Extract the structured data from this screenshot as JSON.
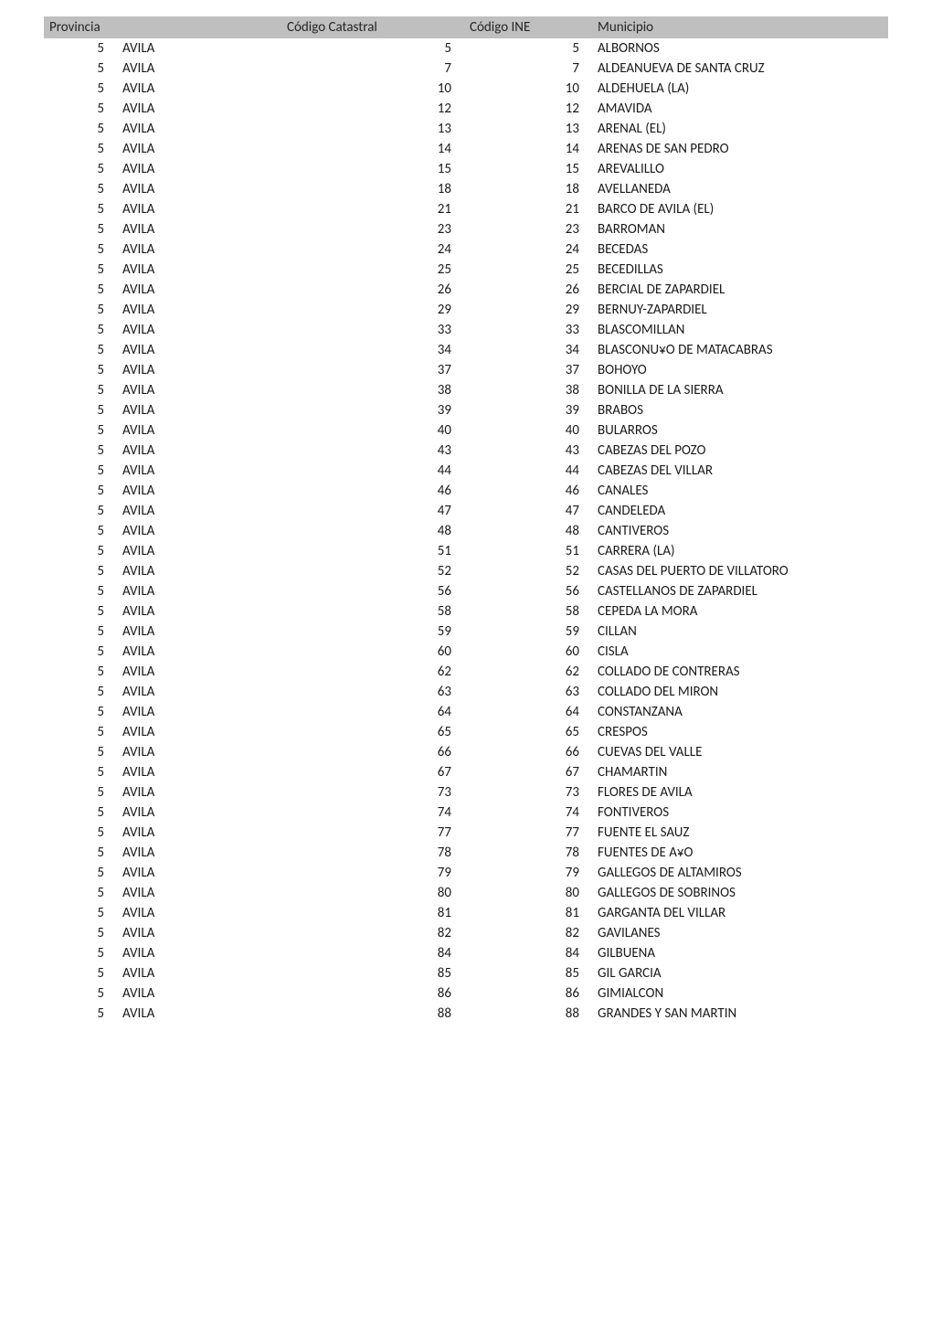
{
  "headers": {
    "provincia": "Provincia",
    "codigo_catastral": "Código Catastral",
    "codigo_ine": "Código INE",
    "municipio": "Municipio"
  },
  "rows": [
    {
      "prov_code": 5,
      "prov_name": "AVILA",
      "cat": 5,
      "ine": 5,
      "muni": "ALBORNOS"
    },
    {
      "prov_code": 5,
      "prov_name": "AVILA",
      "cat": 7,
      "ine": 7,
      "muni": "ALDEANUEVA DE SANTA CRUZ"
    },
    {
      "prov_code": 5,
      "prov_name": "AVILA",
      "cat": 10,
      "ine": 10,
      "muni": "ALDEHUELA (LA)"
    },
    {
      "prov_code": 5,
      "prov_name": "AVILA",
      "cat": 12,
      "ine": 12,
      "muni": "AMAVIDA"
    },
    {
      "prov_code": 5,
      "prov_name": "AVILA",
      "cat": 13,
      "ine": 13,
      "muni": "ARENAL (EL)"
    },
    {
      "prov_code": 5,
      "prov_name": "AVILA",
      "cat": 14,
      "ine": 14,
      "muni": "ARENAS DE SAN PEDRO"
    },
    {
      "prov_code": 5,
      "prov_name": "AVILA",
      "cat": 15,
      "ine": 15,
      "muni": "AREVALILLO"
    },
    {
      "prov_code": 5,
      "prov_name": "AVILA",
      "cat": 18,
      "ine": 18,
      "muni": "AVELLANEDA"
    },
    {
      "prov_code": 5,
      "prov_name": "AVILA",
      "cat": 21,
      "ine": 21,
      "muni": "BARCO DE AVILA (EL)"
    },
    {
      "prov_code": 5,
      "prov_name": "AVILA",
      "cat": 23,
      "ine": 23,
      "muni": "BARROMAN"
    },
    {
      "prov_code": 5,
      "prov_name": "AVILA",
      "cat": 24,
      "ine": 24,
      "muni": "BECEDAS"
    },
    {
      "prov_code": 5,
      "prov_name": "AVILA",
      "cat": 25,
      "ine": 25,
      "muni": "BECEDILLAS"
    },
    {
      "prov_code": 5,
      "prov_name": "AVILA",
      "cat": 26,
      "ine": 26,
      "muni": "BERCIAL DE ZAPARDIEL"
    },
    {
      "prov_code": 5,
      "prov_name": "AVILA",
      "cat": 29,
      "ine": 29,
      "muni": "BERNUY-ZAPARDIEL"
    },
    {
      "prov_code": 5,
      "prov_name": "AVILA",
      "cat": 33,
      "ine": 33,
      "muni": "BLASCOMILLAN"
    },
    {
      "prov_code": 5,
      "prov_name": "AVILA",
      "cat": 34,
      "ine": 34,
      "muni": "BLASCONU¥O DE MATACABRAS"
    },
    {
      "prov_code": 5,
      "prov_name": "AVILA",
      "cat": 37,
      "ine": 37,
      "muni": "BOHOYO"
    },
    {
      "prov_code": 5,
      "prov_name": "AVILA",
      "cat": 38,
      "ine": 38,
      "muni": "BONILLA DE LA SIERRA"
    },
    {
      "prov_code": 5,
      "prov_name": "AVILA",
      "cat": 39,
      "ine": 39,
      "muni": "BRABOS"
    },
    {
      "prov_code": 5,
      "prov_name": "AVILA",
      "cat": 40,
      "ine": 40,
      "muni": "BULARROS"
    },
    {
      "prov_code": 5,
      "prov_name": "AVILA",
      "cat": 43,
      "ine": 43,
      "muni": "CABEZAS DEL POZO"
    },
    {
      "prov_code": 5,
      "prov_name": "AVILA",
      "cat": 44,
      "ine": 44,
      "muni": "CABEZAS DEL VILLAR"
    },
    {
      "prov_code": 5,
      "prov_name": "AVILA",
      "cat": 46,
      "ine": 46,
      "muni": "CANALES"
    },
    {
      "prov_code": 5,
      "prov_name": "AVILA",
      "cat": 47,
      "ine": 47,
      "muni": "CANDELEDA"
    },
    {
      "prov_code": 5,
      "prov_name": "AVILA",
      "cat": 48,
      "ine": 48,
      "muni": "CANTIVEROS"
    },
    {
      "prov_code": 5,
      "prov_name": "AVILA",
      "cat": 51,
      "ine": 51,
      "muni": "CARRERA (LA)"
    },
    {
      "prov_code": 5,
      "prov_name": "AVILA",
      "cat": 52,
      "ine": 52,
      "muni": "CASAS DEL PUERTO DE VILLATORO"
    },
    {
      "prov_code": 5,
      "prov_name": "AVILA",
      "cat": 56,
      "ine": 56,
      "muni": "CASTELLANOS DE ZAPARDIEL"
    },
    {
      "prov_code": 5,
      "prov_name": "AVILA",
      "cat": 58,
      "ine": 58,
      "muni": "CEPEDA LA MORA"
    },
    {
      "prov_code": 5,
      "prov_name": "AVILA",
      "cat": 59,
      "ine": 59,
      "muni": "CILLAN"
    },
    {
      "prov_code": 5,
      "prov_name": "AVILA",
      "cat": 60,
      "ine": 60,
      "muni": "CISLA"
    },
    {
      "prov_code": 5,
      "prov_name": "AVILA",
      "cat": 62,
      "ine": 62,
      "muni": "COLLADO DE CONTRERAS"
    },
    {
      "prov_code": 5,
      "prov_name": "AVILA",
      "cat": 63,
      "ine": 63,
      "muni": "COLLADO DEL MIRON"
    },
    {
      "prov_code": 5,
      "prov_name": "AVILA",
      "cat": 64,
      "ine": 64,
      "muni": "CONSTANZANA"
    },
    {
      "prov_code": 5,
      "prov_name": "AVILA",
      "cat": 65,
      "ine": 65,
      "muni": "CRESPOS"
    },
    {
      "prov_code": 5,
      "prov_name": "AVILA",
      "cat": 66,
      "ine": 66,
      "muni": "CUEVAS DEL VALLE"
    },
    {
      "prov_code": 5,
      "prov_name": "AVILA",
      "cat": 67,
      "ine": 67,
      "muni": "CHAMARTIN"
    },
    {
      "prov_code": 5,
      "prov_name": "AVILA",
      "cat": 73,
      "ine": 73,
      "muni": "FLORES DE AVILA"
    },
    {
      "prov_code": 5,
      "prov_name": "AVILA",
      "cat": 74,
      "ine": 74,
      "muni": "FONTIVEROS"
    },
    {
      "prov_code": 5,
      "prov_name": "AVILA",
      "cat": 77,
      "ine": 77,
      "muni": "FUENTE EL SAUZ"
    },
    {
      "prov_code": 5,
      "prov_name": "AVILA",
      "cat": 78,
      "ine": 78,
      "muni": "FUENTES DE A¥O"
    },
    {
      "prov_code": 5,
      "prov_name": "AVILA",
      "cat": 79,
      "ine": 79,
      "muni": "GALLEGOS DE ALTAMIROS"
    },
    {
      "prov_code": 5,
      "prov_name": "AVILA",
      "cat": 80,
      "ine": 80,
      "muni": "GALLEGOS DE SOBRINOS"
    },
    {
      "prov_code": 5,
      "prov_name": "AVILA",
      "cat": 81,
      "ine": 81,
      "muni": "GARGANTA DEL VILLAR"
    },
    {
      "prov_code": 5,
      "prov_name": "AVILA",
      "cat": 82,
      "ine": 82,
      "muni": "GAVILANES"
    },
    {
      "prov_code": 5,
      "prov_name": "AVILA",
      "cat": 84,
      "ine": 84,
      "muni": "GILBUENA"
    },
    {
      "prov_code": 5,
      "prov_name": "AVILA",
      "cat": 85,
      "ine": 85,
      "muni": "GIL GARCIA"
    },
    {
      "prov_code": 5,
      "prov_name": "AVILA",
      "cat": 86,
      "ine": 86,
      "muni": "GIMIALCON"
    },
    {
      "prov_code": 5,
      "prov_name": "AVILA",
      "cat": 88,
      "ine": 88,
      "muni": "GRANDES Y SAN MARTIN"
    }
  ]
}
